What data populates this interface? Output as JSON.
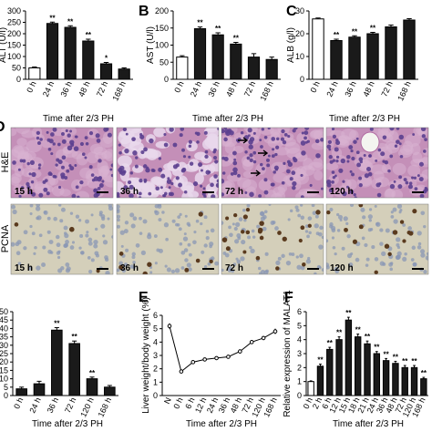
{
  "figure": {
    "panel_a_label": "A",
    "panel_b_label": "B",
    "panel_c_label": "C",
    "panel_d_label": "D",
    "panel_e_label": "E",
    "panel_f_label": "F",
    "xtitle_top": "Time after 2/3 PH",
    "xtitle_bottom": "Time after 2/3 PH",
    "row_he": "H&E",
    "row_pcna": "PCNA",
    "images_he": [
      "15 h",
      "36 h",
      "72 h",
      "120 h"
    ],
    "images_pcna": [
      "15 h",
      "36 h",
      "72 h",
      "120 h"
    ],
    "colors": {
      "bar_fill": "#1a1a1a",
      "control_fill": "#ffffff",
      "he_bg": "#c48fb8",
      "he_nucleus": "#5b3f8f",
      "pcna_bg": "#d4cfba",
      "pcna_nucleus_pos": "#5a3a1e",
      "pcna_nucleus_neg": "#8a97b4"
    }
  },
  "chart_data": [
    {
      "id": "A",
      "type": "bar",
      "ylabel": "ALT (U/l)",
      "categories": [
        "0 h",
        "24 h",
        "36 h",
        "48 h",
        "72 h",
        "168 h"
      ],
      "values": [
        50,
        245,
        228,
        168,
        68,
        45
      ],
      "errors": [
        4,
        6,
        7,
        8,
        6,
        5
      ],
      "significance": [
        "",
        "**",
        "**",
        "**",
        "*",
        ""
      ],
      "ylim": [
        0,
        300
      ],
      "yticks": [
        0,
        50,
        100,
        150,
        200,
        250,
        300
      ],
      "control_index": 0
    },
    {
      "id": "B",
      "type": "bar",
      "ylabel": "AST (U/l)",
      "categories": [
        "0 h",
        "24 h",
        "36 h",
        "48 h",
        "72 h",
        "168 h"
      ],
      "values": [
        65,
        148,
        130,
        103,
        65,
        58
      ],
      "errors": [
        4,
        5,
        6,
        5,
        10,
        7
      ],
      "significance": [
        "",
        "**",
        "**",
        "**",
        "",
        ""
      ],
      "ylim": [
        0,
        200
      ],
      "yticks": [
        0,
        50,
        100,
        150,
        200
      ],
      "control_index": 0
    },
    {
      "id": "C",
      "type": "bar",
      "ylabel": "ALB (g/l)",
      "categories": [
        "0 h",
        "24 h",
        "36 h",
        "48 h",
        "72 h",
        "168 h"
      ],
      "values": [
        26.5,
        17,
        18.5,
        20,
        23,
        26
      ],
      "errors": [
        0.4,
        0.6,
        0.6,
        0.6,
        0.8,
        0.6
      ],
      "significance": [
        "",
        "**",
        "**",
        "**",
        "",
        ""
      ],
      "ylim": [
        0,
        30
      ],
      "yticks": [
        0,
        10,
        20,
        30
      ],
      "control_index": 0
    },
    {
      "id": "D-quant",
      "type": "bar",
      "ylabel": "",
      "categories": [
        "0 h",
        "24 h",
        "36 h",
        "72 h",
        "120 h",
        "168 h"
      ],
      "values": [
        4,
        7,
        39,
        31,
        10,
        5
      ],
      "errors": [
        1,
        1.5,
        1.5,
        1.5,
        1,
        1
      ],
      "significance": [
        "",
        "",
        "**",
        "**",
        "**",
        ""
      ],
      "ylim": [
        0,
        50
      ],
      "yticks": [
        0,
        5,
        10,
        15,
        20,
        25,
        30,
        35,
        40,
        45,
        50
      ],
      "control_index": -1
    },
    {
      "id": "E",
      "type": "line",
      "ylabel": "Liver weight/body weight (%)",
      "categories": [
        "N",
        "0 h",
        "6 h",
        "12 h",
        "24 h",
        "36 h",
        "48 h",
        "72 h",
        "120 h",
        "168 h"
      ],
      "values": [
        5.2,
        1.8,
        2.5,
        2.7,
        2.8,
        2.9,
        3.3,
        4.0,
        4.3,
        4.8
      ],
      "errors": [
        0.2,
        0.1,
        0.1,
        0.1,
        0.1,
        0.1,
        0.15,
        0.15,
        0.15,
        0.2
      ],
      "ylim": [
        0,
        6
      ],
      "yticks": [
        0,
        1,
        2,
        3,
        4,
        5,
        6
      ]
    },
    {
      "id": "F",
      "type": "bar",
      "ylabel": "Relative expression of MALAT1",
      "categories": [
        "0 h",
        "2 h",
        "6 h",
        "12 h",
        "15 h",
        "18 h",
        "21 h",
        "24 h",
        "36 h",
        "48 h",
        "72 h",
        "120 h",
        "168 h"
      ],
      "values": [
        1,
        2.1,
        3.3,
        4.0,
        5.4,
        4.2,
        3.7,
        3.0,
        2.5,
        2.3,
        2.0,
        2.0,
        1.2
      ],
      "errors": [
        0.05,
        0.15,
        0.15,
        0.2,
        0.2,
        0.2,
        0.2,
        0.15,
        0.15,
        0.15,
        0.15,
        0.15,
        0.1
      ],
      "significance": [
        "",
        "**",
        "**",
        "**",
        "**",
        "**",
        "**",
        "**",
        "**",
        "**",
        "**",
        "**",
        "**"
      ],
      "ylim": [
        0,
        6
      ],
      "yticks": [
        0,
        1,
        2,
        3,
        4,
        5,
        6
      ],
      "control_index": 0
    }
  ]
}
